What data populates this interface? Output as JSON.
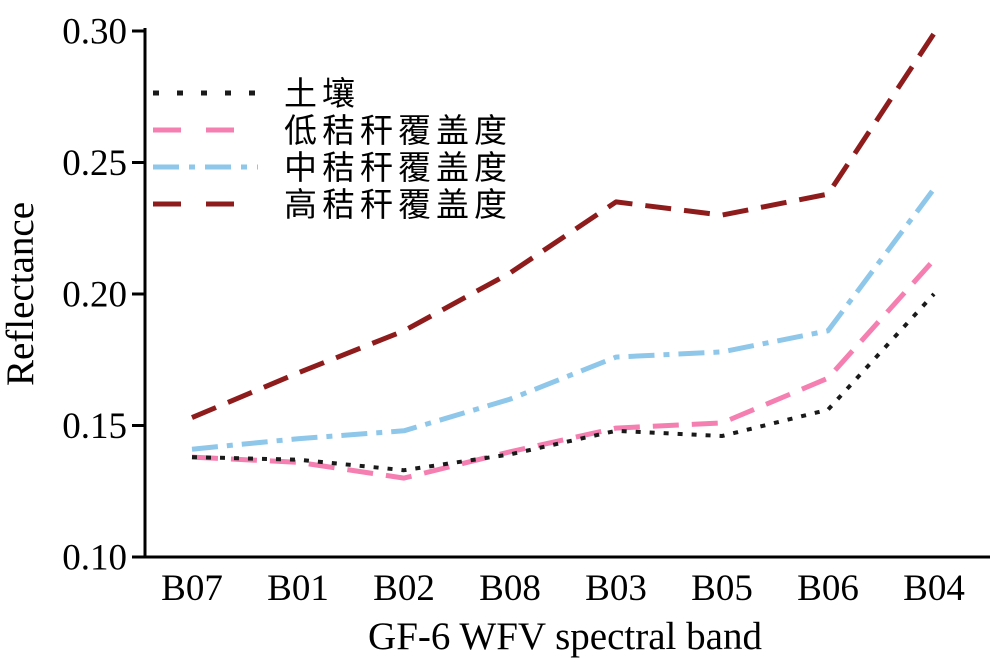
{
  "chart_data": {
    "type": "line",
    "title": "",
    "xlabel": "GF-6 WFV spectral band",
    "ylabel": "Reflectance",
    "categories": [
      "B07",
      "B01",
      "B02",
      "B08",
      "B03",
      "B05",
      "B06",
      "B04"
    ],
    "ylim": [
      0.1,
      0.3
    ],
    "yticks": [
      0.1,
      0.15,
      0.2,
      0.25,
      0.3
    ],
    "ytick_labels": [
      "0.10",
      "0.15",
      "0.20",
      "0.25",
      "0.30"
    ],
    "grid": false,
    "legend_position": "upper-left-inside",
    "axis_color": "#000000",
    "series": [
      {
        "name": "土壤",
        "color": "#1a1a1a",
        "style": "dotted",
        "values": [
          0.138,
          0.137,
          0.133,
          0.139,
          0.148,
          0.146,
          0.156,
          0.2
        ]
      },
      {
        "name": "低秸秆覆盖度",
        "color": "#f47fb0",
        "style": "dashed",
        "values": [
          0.138,
          0.136,
          0.13,
          0.14,
          0.149,
          0.151,
          0.168,
          0.213
        ]
      },
      {
        "name": "中秸秆覆盖度",
        "color": "#8ec7ea",
        "style": "dashdot",
        "values": [
          0.141,
          0.145,
          0.148,
          0.16,
          0.176,
          0.178,
          0.186,
          0.24
        ]
      },
      {
        "name": "高秸秆覆盖度",
        "color": "#8e1c1c",
        "style": "dashed",
        "values": [
          0.153,
          0.17,
          0.186,
          0.208,
          0.235,
          0.23,
          0.238,
          0.299
        ]
      }
    ]
  }
}
